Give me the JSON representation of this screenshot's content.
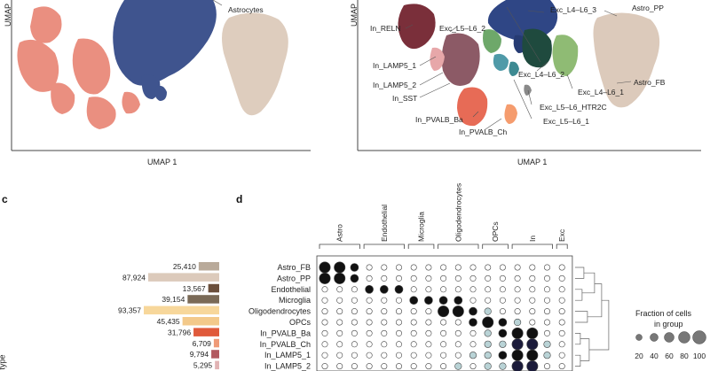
{
  "panel_a": {
    "ylabel": "UMAP",
    "xlabel": "UMAP 1",
    "labels": [
      "Astrocytes"
    ]
  },
  "panel_b": {
    "ylabel": "UMAP",
    "xlabel": "UMAP 1",
    "labels": [
      "In_RELN",
      "Exc_L5–L6_2",
      "Exc_L4–L6_3",
      "Astro_PP",
      "In_LAMP5_1",
      "In_LAMP5_2",
      "In_SST",
      "Exc_L4–L6_2",
      "Exc_L4–L6_1",
      "Astro_FB",
      "Exc_L5–L6_HTR2C",
      "Exc_L5–L6_1",
      "In_PVALB_Ba",
      "In_PVALB_Ch"
    ]
  },
  "panel_c": {
    "letter": "c",
    "ylabel_fragment": "type",
    "chart_data": {
      "type": "bar",
      "categories": [
        "Astro_FB",
        "Astro_PP",
        "Endothelial",
        "Microglia",
        "Oligodendrocytes",
        "OPCs",
        "In_PVALB_Ba",
        "In_PVALB_Ch",
        "In_LAMP5_1",
        "In_LAMP5_2"
      ],
      "values": [
        25410,
        87924,
        13567,
        39154,
        93357,
        45435,
        31796,
        6709,
        9794,
        5295
      ],
      "value_labels": [
        "25,410",
        "87,924",
        "13,567",
        "39,154",
        "93,357",
        "45,435",
        "31,796",
        "6,709",
        "9,794",
        "5,295"
      ],
      "bar_colors": [
        "#b9aa9a",
        "#dccabb",
        "#6b4f3c",
        "#7a6a57",
        "#f7d79b",
        "#f3c98a",
        "#e05a3b",
        "#ef9a78",
        "#b25a60",
        "#e1b3b4"
      ]
    }
  },
  "panel_d": {
    "letter": "d",
    "groups": [
      "Astro",
      "Endothelial",
      "Microglia",
      "Oligodendrocytes",
      "OPCs",
      "In",
      "Exc"
    ],
    "rows": [
      "Astro_FB",
      "Astro_PP",
      "Endothelial",
      "Microglia",
      "Oligodendrocytes",
      "OPCs",
      "In_PVALB_Ba",
      "In_PVALB_Ch",
      "In_LAMP5_1",
      "In_LAMP5_2"
    ],
    "legend_title_1": "Fraction of cells",
    "legend_title_2": "in group",
    "legend_values": [
      "20",
      "40",
      "60",
      "80",
      "100"
    ]
  }
}
